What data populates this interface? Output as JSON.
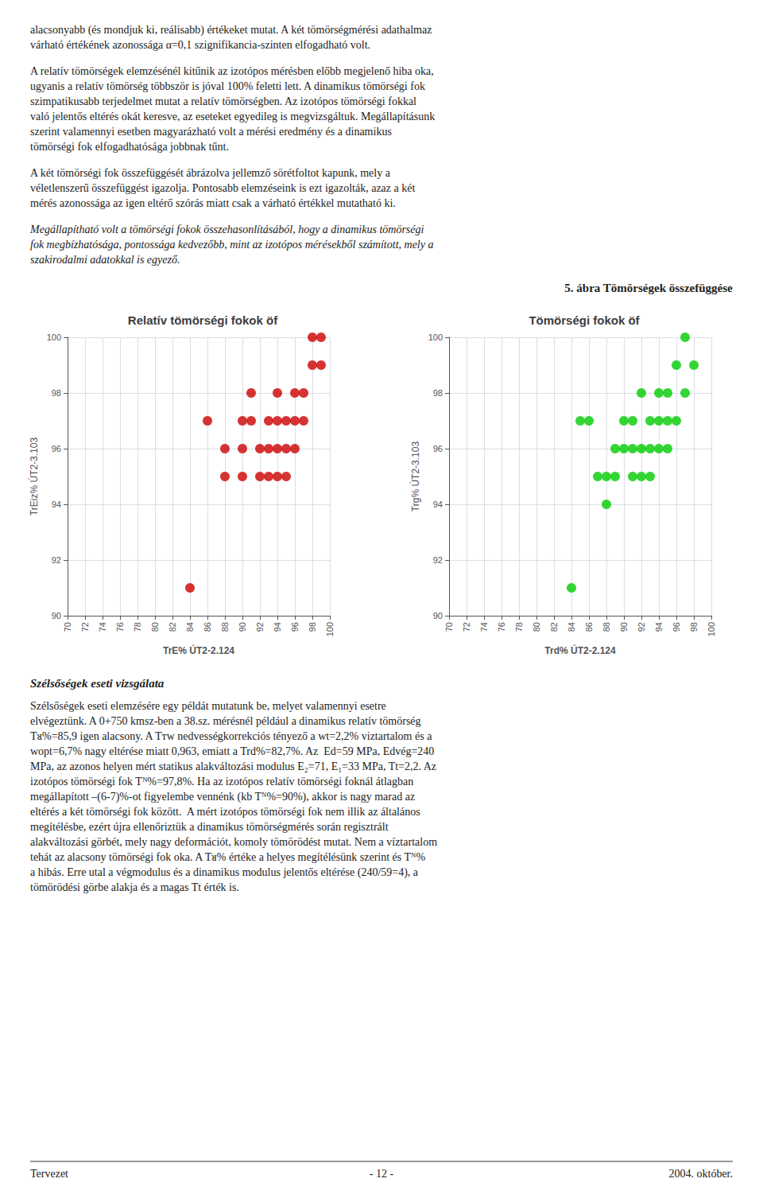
{
  "title": "5. ábra Tömörségek összefüggése",
  "annotations": [
    "alacsonyabb (és mondjuk ki, reálisabb) értékeket mutat. A két tömörségmérési adathalmaz\nvárható értékének azonossága α=0,1 szignifikancia-szinten elfogadható volt.",
    "A relatív tömörségek elemzésénél kitűnik az izotópos mérésben előbb megjelenő hiba oka,\nugyanis a relatív tömörség többször is jóval 100% feletti lett. A dinamikus tömörségi fok\nszimpatikusabb terjedelmet mutat a relatív tömörségben. Az izotópos tömörségi fokkal\nvaló jelentős eltérés okát keresve, az eseteket egyedileg is megvizsgáltuk. Megállapításunk\nszerint valamennyi esetben magyarázható volt a mérési eredmény és a dinamikus\ntömörségi fok elfogadhatósága jobbnak tűnt.",
    "A két tömörségi fok összefüggését ábrázolva jellemző sörétfoltot kapunk, mely a\nvéletlenszerű összefüggést igazolja. Pontosabb elemzéseink is ezt igazolták, azaz a két\nmérés azonossága az igen eltérő szórás miatt csak a várható értékkel mutatható ki.",
    "Megállapítható volt a tömörségi fokok összehasonlításából, hogy a dinamikus tömörségi\nfok megbízhatósága, pontossága kedvezőbb, mint az izotópos mérésekből számított, mely a\nszakirodalmi adatokkal is egyező.",
    "Szélsőségek eseti vizsgálata",
    "Szélsőségek eseti elemzésére egy példát mutatunk be, melyet valamennyi esetre\nelvégeztünk. A 0+750 kmsz-ben a 38.sz. mérésnél például a dinamikus relatív tömörség\nTᴚ%=85,9 igen alacsony. A Tᴛw nedvességkorrekciós tényező a wt=2,2% viztartalom és a\nwopt=6,7% nagy eltérése miatt 0,963, emiatt a Trd%=82,7%. Az  Ed=59 MPa, Edvég=240\nMPa, az azonos helyen mért statikus alakváltozási modulus E₂=71, E₁=33 MPa, Tt=2,2. Az\nizotópos tömörségi fok Tᴺ%=97,8%. Ha az izotópos relatív tömörségi foknál átlagban\nmegállapított –(6-7)%-ot figyelembe vennénk (kb Tᴺ%=90%), akkor is nagy marad az\neltérés a két tömörségi fok között.  A mért izotópos tömörségi fok nem illik az általános\nmegítélésbe, ezért újra ellenőriztük a dinamikus tömörségmérés során regisztrált\nalakváltozási görbét, mely nagy deformációt, komoly tömörödést mutat. Nem a víztartalom\ntehát az alacsony tömörségi fok oka. A Tᴚ% értéke a helyes megítélésünk szerint és Tᴺ%\na hibás. Erre utal a végmodulus és a dinamikus modulus jelentős eltérése (240/59=4), a\ntömörödési görbe alakja és a magas Tt érték is.",
    "Tervezet",
    "- 12 -",
    "2004. október."
  ],
  "chart_data": [
    {
      "type": "scatter",
      "title": "Relatív tömörségi fokok öf",
      "xlabel": "TrE% ÚT2-2.124",
      "ylabel": "TrEiz% ÚT2-3.103",
      "color": "#CC0000",
      "x": [
        84,
        86,
        88,
        88,
        90,
        90,
        90,
        91,
        91,
        92,
        92,
        93,
        93,
        93,
        94,
        94,
        94,
        94,
        95,
        95,
        95,
        96,
        96,
        96,
        97,
        97,
        98,
        98,
        99,
        99
      ],
      "values": [
        91,
        97,
        95,
        96,
        95,
        96,
        97,
        97,
        98,
        95,
        96,
        95,
        96,
        97,
        95,
        96,
        97,
        98,
        95,
        96,
        97,
        96,
        97,
        98,
        97,
        98,
        99,
        100,
        99,
        100
      ],
      "xlim": [
        70,
        100
      ],
      "ylim": [
        90,
        100
      ],
      "xticks": [
        70,
        72,
        74,
        76,
        78,
        80,
        82,
        84,
        86,
        88,
        90,
        92,
        94,
        96,
        98,
        100
      ],
      "yticks": [
        90,
        92,
        94,
        96,
        98,
        100
      ],
      "grid": true
    },
    {
      "type": "scatter",
      "title": "Tömörségi fokok öf",
      "xlabel": "Trd% ÚT2-2.124",
      "ylabel": "Trg% ÚT2-3.103",
      "color": "#00CC00",
      "x": [
        84,
        85,
        86,
        87,
        88,
        88,
        89,
        89,
        90,
        90,
        91,
        91,
        91,
        92,
        92,
        92,
        93,
        93,
        93,
        94,
        94,
        94,
        95,
        95,
        95,
        96,
        96,
        97,
        97,
        98
      ],
      "values": [
        91,
        97,
        97,
        95,
        94,
        95,
        95,
        96,
        96,
        97,
        95,
        96,
        97,
        95,
        96,
        98,
        95,
        96,
        97,
        96,
        97,
        98,
        96,
        97,
        98,
        97,
        99,
        98,
        100,
        99
      ],
      "xlim": [
        70,
        100
      ],
      "ylim": [
        90,
        100
      ],
      "xticks": [
        70,
        72,
        74,
        76,
        78,
        80,
        82,
        84,
        86,
        88,
        90,
        92,
        94,
        96,
        98,
        100
      ],
      "yticks": [
        90,
        92,
        94,
        96,
        98,
        100
      ],
      "grid": true
    }
  ]
}
